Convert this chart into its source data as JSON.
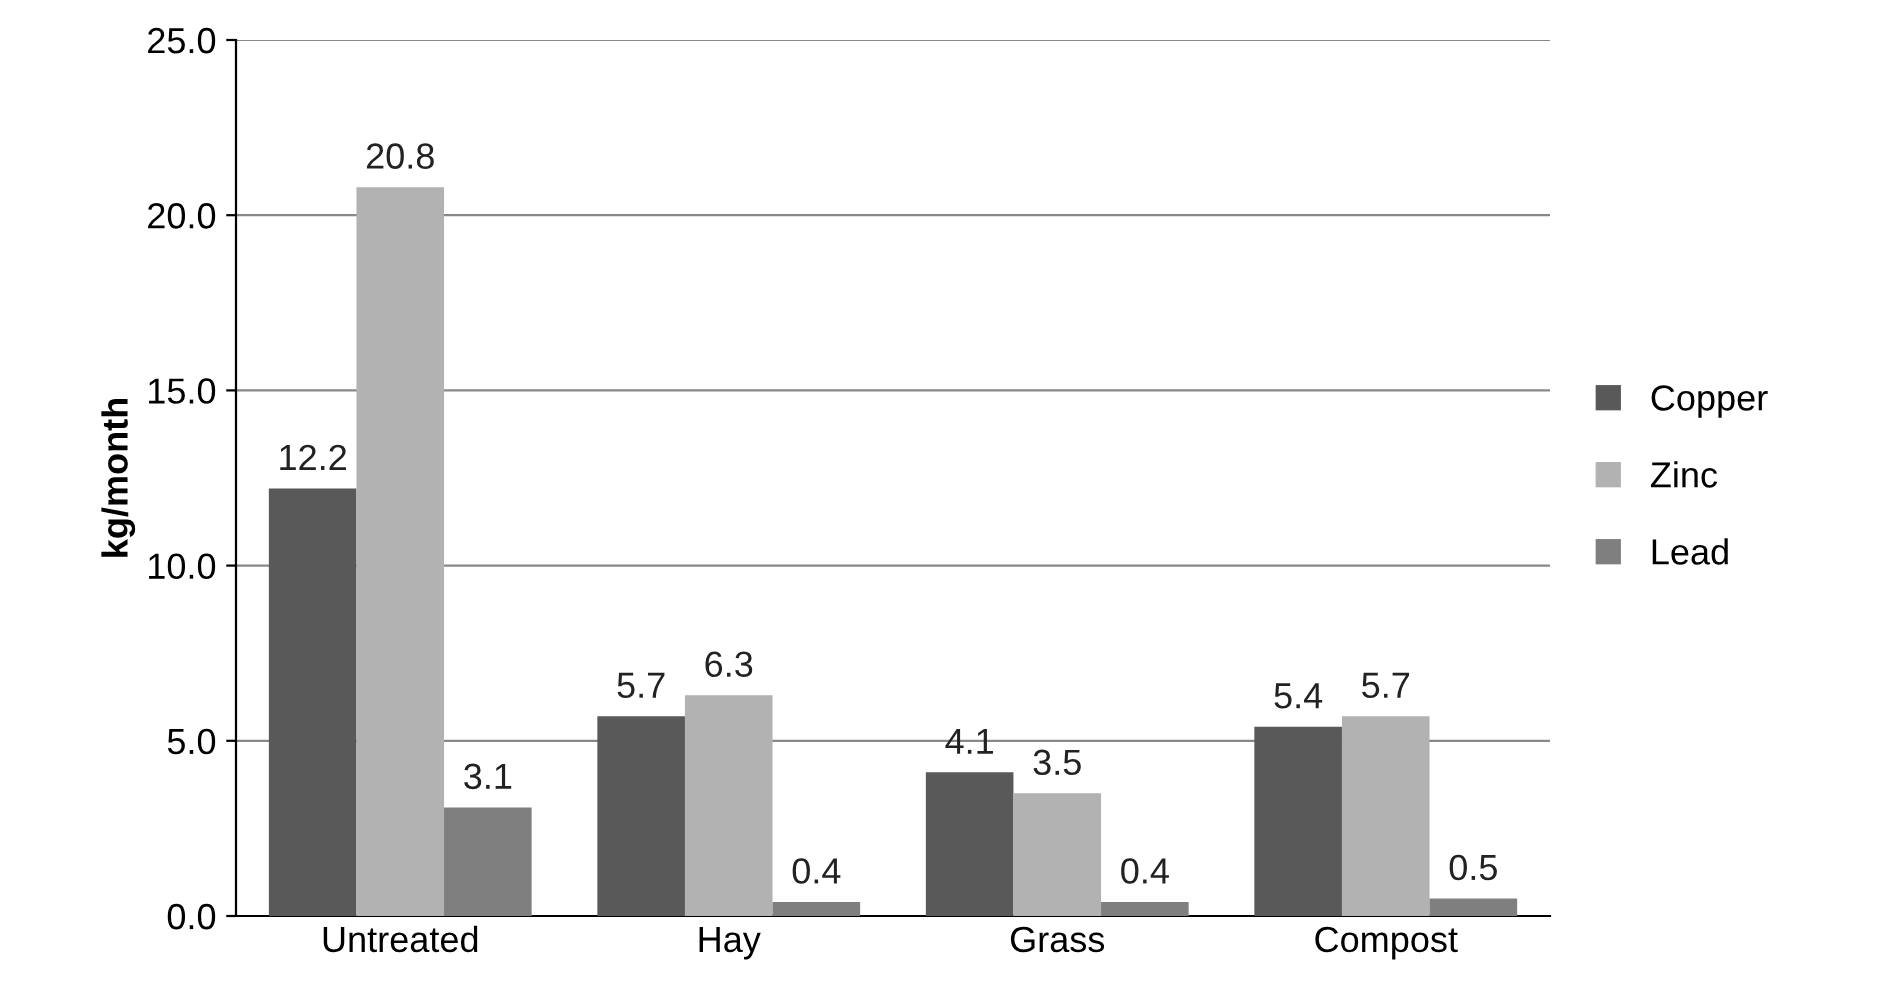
{
  "chart_data": {
    "type": "bar",
    "ylabel": "kg/month",
    "categories": [
      "Untreated",
      "Hay",
      "Grass",
      "Compost"
    ],
    "series": [
      {
        "name": "Copper",
        "color": "#595959",
        "values": [
          12.2,
          5.7,
          4.1,
          5.4
        ]
      },
      {
        "name": "Zinc",
        "color": "#b2b2b2",
        "values": [
          20.8,
          6.3,
          3.5,
          5.7
        ]
      },
      {
        "name": "Lead",
        "color": "#7f7f7f",
        "values": [
          3.1,
          0.4,
          0.4,
          0.5
        ]
      }
    ],
    "ylim": [
      0,
      25
    ],
    "yticks": [
      {
        "value": 0,
        "label": "0.0"
      },
      {
        "value": 5,
        "label": "5.0"
      },
      {
        "value": 10,
        "label": "10.0"
      },
      {
        "value": 15,
        "label": "15.0"
      },
      {
        "value": 20,
        "label": "20.0"
      },
      {
        "value": 25,
        "label": "25.0"
      }
    ],
    "grid": "y",
    "legend": "right",
    "data_labels": true
  }
}
